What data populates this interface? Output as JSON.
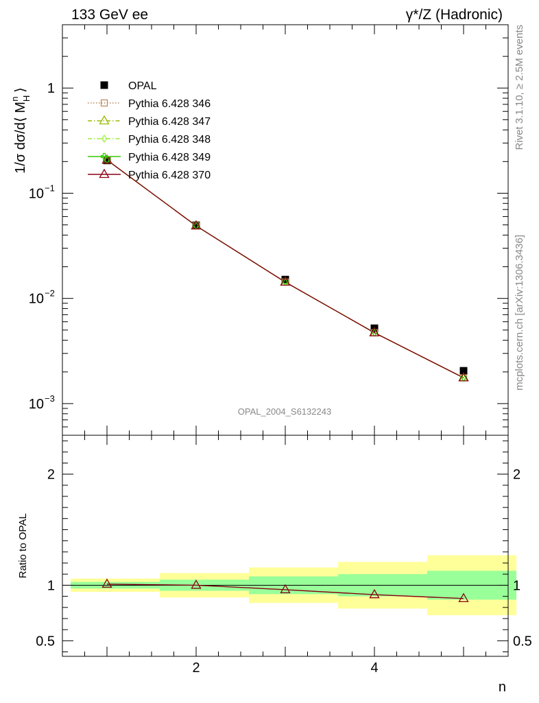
{
  "header": {
    "left": "133 GeV ee",
    "right": "γ*/Z (Hadronic)"
  },
  "side": {
    "rivet": "Rivet 3.1.10, ≥ 2.5M events",
    "mcplots": "mcplots.cern.ch [arXiv:1306.3436]"
  },
  "watermark": "OPAL_2004_S6132243",
  "chart_data": [
    {
      "type": "line",
      "panel": "main",
      "ylabel": "1/σ dσ/d⟨ M_H^n ⟩",
      "xlabel": "",
      "yscale": "log",
      "xlim": [
        0.5,
        5.5
      ],
      "ylim": [
        0.0005,
        4
      ],
      "x": [
        1,
        2,
        3,
        4,
        5
      ],
      "x_ticks": [
        2,
        4
      ],
      "y_ticks": [
        {
          "value": 1,
          "label": "1"
        },
        {
          "value": 0.1,
          "label": "10",
          "exp": "−1"
        },
        {
          "value": 0.01,
          "label": "10",
          "exp": "−2"
        },
        {
          "value": 0.001,
          "label": "10",
          "exp": "−3"
        }
      ],
      "legend_placement": "upper-left",
      "series": [
        {
          "name": "OPAL",
          "marker": "square",
          "color": "#000000",
          "values": [
            0.205,
            0.0495,
            0.0151,
            0.0052,
            0.00205
          ]
        },
        {
          "name": "Pythia 6.428 346",
          "marker": "open-square",
          "color": "#b5875a",
          "line": "dotted",
          "values": [
            0.207,
            0.049,
            0.0143,
            0.00472,
            0.00176
          ]
        },
        {
          "name": "Pythia 6.428 347",
          "marker": "open-triangle",
          "color": "#99bb00",
          "line": "dash-dot",
          "values": [
            0.207,
            0.049,
            0.0143,
            0.00472,
            0.00176
          ]
        },
        {
          "name": "Pythia 6.428 348",
          "marker": "open-diamond",
          "color": "#99ee33",
          "line": "dash-dot",
          "values": [
            0.207,
            0.049,
            0.0143,
            0.00472,
            0.00176
          ]
        },
        {
          "name": "Pythia 6.428 349",
          "marker": "open-cross",
          "color": "#33cc00",
          "line": "solid",
          "values": [
            0.207,
            0.049,
            0.0143,
            0.00472,
            0.00176
          ]
        },
        {
          "name": "Pythia 6.428 370",
          "marker": "open-triangle",
          "color": "#880011",
          "line": "solid",
          "values": [
            0.207,
            0.049,
            0.0143,
            0.00472,
            0.00176
          ]
        }
      ]
    },
    {
      "type": "line",
      "panel": "ratio",
      "ylabel": "Ratio to OPAL",
      "xlabel": "n",
      "xlim": [
        0.5,
        5.5
      ],
      "ylim": [
        0.36,
        2.35
      ],
      "x": [
        1,
        2,
        3,
        4,
        5
      ],
      "x_ticks": [
        2,
        4
      ],
      "y_ticks": [
        {
          "value": 0.5,
          "label": "0.5"
        },
        {
          "value": 1,
          "label": "1"
        },
        {
          "value": 2,
          "label": "2"
        }
      ],
      "bin_edges": [
        0.5,
        1.5,
        2.5,
        3.5,
        4.5,
        5.5
      ],
      "bands": [
        {
          "name": "stat",
          "color": "#99ff99",
          "lower": [
            0.97,
            0.95,
            0.92,
            0.9,
            0.87
          ],
          "upper": [
            1.03,
            1.05,
            1.08,
            1.1,
            1.13
          ]
        },
        {
          "name": "total",
          "color": "#ffff99",
          "lower": [
            0.94,
            0.89,
            0.84,
            0.79,
            0.73
          ],
          "upper": [
            1.06,
            1.11,
            1.16,
            1.21,
            1.27
          ]
        }
      ],
      "series": [
        {
          "name": "Pythia 6.428 370",
          "marker": "open-triangle",
          "color": "#880011",
          "values": [
            1.01,
            1.0,
            0.96,
            0.915,
            0.88
          ]
        }
      ]
    }
  ]
}
